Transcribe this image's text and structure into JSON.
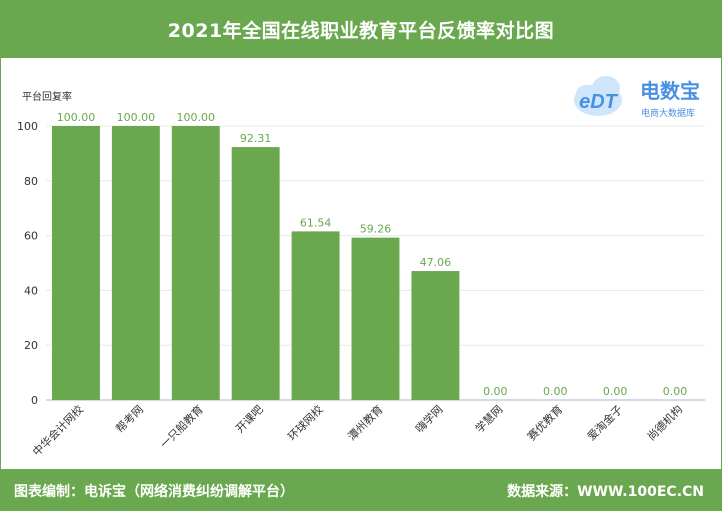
{
  "header": {
    "title": "2021年全国在线职业教育平台反馈率对比图"
  },
  "footer": {
    "left": "图表编制：电诉宝（网络消费纠纷调解平台）",
    "right": "数据来源：WWW.100EC.CN"
  },
  "logo": {
    "main": "电数宝",
    "sub": "电商大数据库",
    "mark": "eDT"
  },
  "colors": {
    "bar": "#6aa84f",
    "label": "#6aa84f",
    "brand_blue": "#4a90e2",
    "brand_cloud": "#a9d3f5"
  },
  "chart_data": {
    "type": "bar",
    "ylabel": "平台回复率",
    "ylim": [
      0,
      100
    ],
    "yticks": [
      0,
      20,
      40,
      60,
      80,
      100
    ],
    "categories": [
      "中华会计网校",
      "帮考网",
      "一只船教育",
      "开课吧",
      "环球网校",
      "潭州教育",
      "嗨学网",
      "学慧网",
      "赛优教育",
      "爱淘金子",
      "尚德机构"
    ],
    "values": [
      100.0,
      100.0,
      100.0,
      92.31,
      61.54,
      59.26,
      47.06,
      0.0,
      0.0,
      0.0,
      0.0
    ],
    "value_labels": [
      "100.00",
      "100.00",
      "100.00",
      "92.31",
      "61.54",
      "59.26",
      "47.06",
      "0.00",
      "0.00",
      "0.00",
      "0.00"
    ],
    "grid": true,
    "legend": "none"
  }
}
